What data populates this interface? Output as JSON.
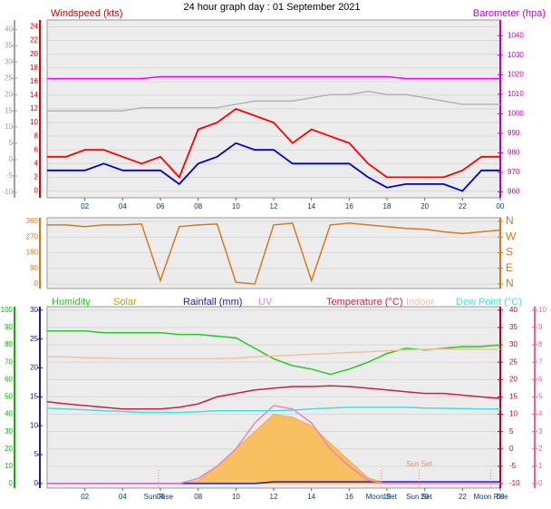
{
  "chart_data": [
    {
      "type": "line",
      "title": "24 hour graph day : 01 September 2021",
      "ylabel": "Windspeed (kts)",
      "y2label": "Barometer (hpa)",
      "x": [
        0,
        1,
        2,
        3,
        4,
        5,
        6,
        7,
        8,
        9,
        10,
        11,
        12,
        13,
        14,
        15,
        16,
        17,
        18,
        19,
        20,
        21,
        22,
        23,
        24
      ],
      "xlim": [
        0,
        24
      ],
      "xticks": [
        {
          "value": 2,
          "label": "02"
        },
        {
          "value": 4,
          "label": "04"
        },
        {
          "value": 6,
          "label": "06"
        },
        {
          "value": 8,
          "label": "08"
        },
        10,
        12,
        14,
        16,
        18,
        20,
        22,
        {
          "value": 24,
          "label": "00"
        }
      ],
      "ylim": [
        -1,
        25
      ],
      "yticks": [
        0,
        2,
        4,
        6,
        8,
        10,
        12,
        14,
        16,
        18,
        20,
        22,
        24
      ],
      "ycolor": "#e00000",
      "y2lim": [
        957,
        1048
      ],
      "y2ticks": [
        960,
        970,
        980,
        990,
        1000,
        1010,
        1020,
        1030,
        1040
      ],
      "y2color": "#c000c0",
      "y3lim": [
        -11.7,
        42.9
      ],
      "y3ticks": [
        -10,
        -5,
        0,
        5,
        10,
        15,
        20,
        25,
        30,
        35,
        40
      ],
      "y3color": "#a0a0a0",
      "grid": true,
      "series": [
        {
          "color": "#b4b4b4",
          "axis": "y3",
          "values": [
            15,
            15,
            15,
            15,
            15,
            16,
            16,
            16,
            16,
            16,
            17,
            18,
            18,
            18,
            19,
            20,
            20,
            21,
            20,
            20,
            19,
            18,
            17,
            17,
            17
          ]
        },
        {
          "color": "#ff00ff",
          "axis": "y2",
          "values": [
            1018,
            1018,
            1018,
            1018,
            1018,
            1018,
            1019,
            1019,
            1019,
            1019,
            1019,
            1019,
            1019,
            1019,
            1019,
            1019,
            1019,
            1019,
            1019,
            1018,
            1018,
            1018,
            1018,
            1018,
            1018
          ]
        },
        {
          "color": "#ff0000",
          "values": [
            5,
            5,
            6,
            6,
            5,
            4,
            5,
            2,
            9,
            10,
            12,
            11,
            10,
            7,
            9,
            8,
            7,
            4,
            2,
            2,
            2,
            2,
            3,
            5,
            5
          ]
        },
        {
          "color": "#0000c8",
          "values": [
            3,
            3,
            3,
            4,
            3,
            3,
            3,
            1,
            4,
            5,
            7,
            6,
            6,
            4,
            4,
            4,
            4,
            2,
            0.5,
            1,
            1,
            1,
            0,
            3,
            3
          ]
        }
      ]
    },
    {
      "type": "line",
      "x": [
        0,
        1,
        2,
        3,
        4,
        5,
        6,
        7,
        8,
        9,
        10,
        11,
        12,
        13,
        14,
        15,
        16,
        17,
        18,
        19,
        20,
        21,
        22,
        23,
        24
      ],
      "xlim": [
        0,
        24
      ],
      "ylim": [
        -26,
        381
      ],
      "yticks": [
        0,
        90,
        180,
        270,
        360
      ],
      "ycolor": "#d07820",
      "y2lim": [
        -26,
        381
      ],
      "y2ticks": [
        {
          "value": 0,
          "label": "N"
        },
        {
          "value": 90,
          "label": "E"
        },
        {
          "value": 180,
          "label": "S"
        },
        {
          "value": 270,
          "label": "W"
        },
        {
          "value": 360,
          "label": "N"
        }
      ],
      "y2color": "#d07820",
      "grid": true,
      "series": [
        {
          "color": "#d47a20",
          "values": [
            340,
            340,
            330,
            340,
            340,
            345,
            20,
            330,
            340,
            345,
            10,
            0,
            340,
            350,
            20,
            340,
            350,
            340,
            330,
            320,
            315,
            300,
            290,
            300,
            310
          ]
        }
      ]
    },
    {
      "type": "line",
      "x": [
        0,
        1,
        2,
        3,
        4,
        5,
        6,
        7,
        8,
        9,
        10,
        11,
        12,
        13,
        14,
        15,
        16,
        17,
        18,
        19,
        20,
        21,
        22,
        23,
        24
      ],
      "xlim": [
        0,
        24
      ],
      "xticks": [
        {
          "value": 2,
          "label": "02"
        },
        {
          "value": 4,
          "label": "04"
        },
        {
          "value": 6,
          "label": "06"
        },
        {
          "value": 8,
          "label": "08"
        },
        10,
        12,
        14,
        16,
        18,
        20,
        22,
        {
          "value": 24,
          "label": "00"
        }
      ],
      "ylim": [
        -2.6,
        102
      ],
      "yticks": [
        0,
        10,
        20,
        30,
        40,
        50,
        60,
        70,
        80,
        90,
        100
      ],
      "ycolor": "#10b010",
      "y2lim": [
        -0.8,
        30.6
      ],
      "y2ticks": [
        0,
        5,
        10,
        15,
        20,
        25,
        30
      ],
      "y2color": "#202080",
      "y3lim": [
        -11.3,
        41
      ],
      "y3ticks": [
        -10,
        -5,
        0,
        5,
        10,
        15,
        20,
        25,
        30,
        35,
        40
      ],
      "y3color": "#c00020",
      "y4lim": [
        -0.26,
        10.2
      ],
      "y4ticks": [
        0,
        1,
        2,
        3,
        4,
        5,
        6,
        7,
        8,
        9,
        10
      ],
      "y4color": "#f060a0",
      "grid": true,
      "series": [
        {
          "name": "Humidity",
          "color": "#22cc22",
          "values": [
            88,
            88,
            88,
            87,
            87,
            87,
            87,
            86,
            86,
            85,
            84,
            78,
            72,
            68,
            66,
            63,
            66,
            70,
            75,
            78,
            77,
            78,
            79,
            79,
            80
          ]
        },
        {
          "name": "Solar",
          "color": "#f8c060",
          "axis": "y2",
          "area": true,
          "values": [
            0,
            0,
            0,
            0,
            0,
            0,
            0,
            0,
            0.5,
            3,
            6,
            9,
            12,
            11.5,
            10,
            7,
            4,
            1,
            0,
            0,
            0,
            0,
            0,
            0,
            0
          ]
        },
        {
          "name": "Rainfall (mm)",
          "color": "#2020c0",
          "axis": "y2",
          "values": [
            0,
            0,
            0,
            0,
            0,
            0,
            0,
            0,
            0,
            0,
            0,
            0,
            0.3,
            0.3,
            0.3,
            0.3,
            0.3,
            0.3,
            0.3,
            0.3,
            0.3,
            0.3,
            0.3,
            0.3,
            0.3
          ]
        },
        {
          "name": "UV",
          "color": "#f080c0",
          "axis": "y4",
          "values": [
            0,
            0,
            0,
            0,
            0,
            0,
            0,
            0,
            0.3,
            1,
            2,
            3.5,
            4.5,
            4.3,
            3.5,
            2,
            1,
            0.2,
            0,
            0,
            0,
            0,
            0,
            0,
            0
          ]
        },
        {
          "name": "Temperature (°C)",
          "color": "#d02040",
          "axis": "y3",
          "values": [
            13.6,
            13,
            12.5,
            12,
            11.5,
            11.5,
            11.5,
            12,
            13,
            15,
            16,
            17,
            17.5,
            18,
            18,
            18.2,
            18,
            17.5,
            17,
            16.5,
            16,
            16,
            15.5,
            15,
            14.5
          ]
        },
        {
          "name": "Indoor",
          "color": "#f4c0a0",
          "axis": "y3",
          "values": [
            26.6,
            26.5,
            26.3,
            26.2,
            26,
            26,
            26,
            26,
            26,
            26,
            26.2,
            26.5,
            26.8,
            27,
            27.3,
            27.5,
            27.8,
            28,
            28.3,
            28.5,
            28.7,
            28.8,
            28.8,
            28.7,
            28.7
          ]
        },
        {
          "name": "Dew Point (°C)",
          "color": "#40e0e0",
          "axis": "y3",
          "values": [
            11.7,
            11.5,
            11.3,
            11,
            10.8,
            10.5,
            10.5,
            10.5,
            10.7,
            11,
            11,
            11,
            11,
            11.2,
            11.5,
            11.8,
            12,
            12,
            12,
            12,
            11.8,
            11.7,
            11.6,
            11.5,
            11.5
          ]
        }
      ],
      "annotations": [
        {
          "label": "Sun Rise",
          "x": 5.9
        },
        {
          "label": "Moon Set",
          "x": 17.7
        },
        {
          "label": "Sun Set",
          "x": 19.7
        },
        {
          "label": "Moon Rise",
          "x": 23.5
        }
      ],
      "plot_annotations": [
        {
          "label": "Sun Set",
          "x": 19.7
        }
      ]
    }
  ]
}
